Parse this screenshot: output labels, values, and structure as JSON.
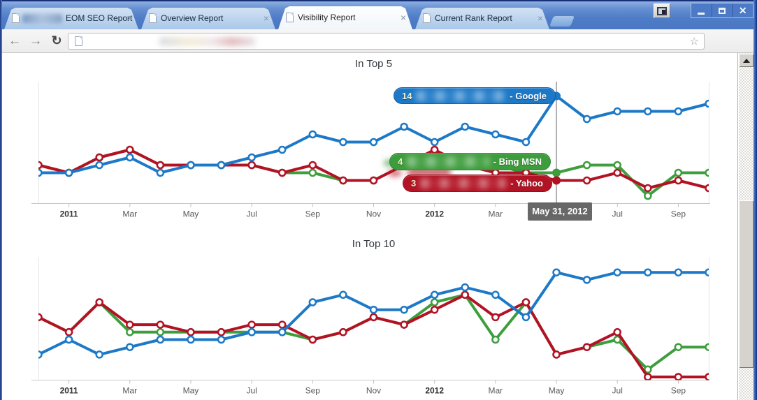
{
  "browser": {
    "tabs": [
      {
        "title": "EOM SEO Report",
        "redacted_prefix": true,
        "active": false
      },
      {
        "title": "Overview Report",
        "redacted_prefix": false,
        "active": false
      },
      {
        "title": "Visibility Report",
        "redacted_prefix": false,
        "active": true
      },
      {
        "title": "Current Rank Report",
        "redacted_prefix": false,
        "active": false
      }
    ],
    "tab_close_glyph": "×",
    "window_controls": {
      "minimize": "minimize",
      "maximize": "maximize",
      "close": "✕"
    },
    "toolbar": {
      "back": "←",
      "forward": "→",
      "reload": "↻",
      "bookmark_star": "☆",
      "url_redacted": true
    }
  },
  "tooltip": {
    "date": "May 31, 2012",
    "points": [
      {
        "value": "14",
        "suffix": "- Google"
      },
      {
        "value": "4",
        "suffix": "- Bing MSN"
      },
      {
        "value": "3",
        "suffix": "- Yahoo"
      }
    ]
  },
  "colors": {
    "google": "#1d79c7",
    "bing": "#3c9e3c",
    "yahoo": "#b31225",
    "crosshair": "#8a8a8a",
    "axis": "#c8c8c8"
  },
  "chart_data": [
    {
      "type": "line",
      "title": "In Top 5",
      "x": [
        "Dec 2010",
        "Jan 2011",
        "Feb 2011",
        "Mar 2011",
        "Apr 2011",
        "May 2011",
        "Jun 2011",
        "Jul 2011",
        "Aug 2011",
        "Sep 2011",
        "Oct 2011",
        "Nov 2011",
        "Dec 2011",
        "Jan 2012",
        "Feb 2012",
        "Mar 2012",
        "Apr 2012",
        "May 2012",
        "Jun 2012",
        "Jul 2012",
        "Aug 2012",
        "Sep 2012",
        "Oct 2012"
      ],
      "tick_labels": [
        "2011",
        "Mar",
        "May",
        "Jul",
        "Sep",
        "Nov",
        "2012",
        "Mar",
        "May",
        "Jul",
        "Sep"
      ],
      "series": [
        {
          "name": "Google",
          "color": "#1d79c7",
          "values": [
            4,
            4,
            5,
            6,
            4,
            5,
            5,
            6,
            7,
            9,
            8,
            8,
            10,
            8,
            10,
            9,
            8,
            14,
            11,
            12,
            12,
            12,
            13
          ]
        },
        {
          "name": "Bing MSN",
          "color": "#3c9e3c",
          "values": [
            5,
            4,
            6,
            7,
            5,
            5,
            5,
            5,
            4,
            4,
            3,
            3,
            5,
            6,
            5,
            5,
            4,
            4,
            5,
            5,
            1,
            4,
            4
          ]
        },
        {
          "name": "Yahoo",
          "color": "#b31225",
          "values": [
            5,
            4,
            6,
            7,
            5,
            5,
            5,
            5,
            4,
            5,
            3,
            3,
            5,
            7,
            5,
            4,
            4,
            3,
            3,
            4,
            2,
            3,
            2
          ]
        }
      ],
      "hover": {
        "x": "May 2012",
        "label": "May 31, 2012",
        "values": {
          "Google": 14,
          "Bing MSN": 4,
          "Yahoo": 3
        }
      },
      "legend": "none",
      "grid": false
    },
    {
      "type": "line",
      "title": "In Top 10",
      "x": [
        "Dec 2010",
        "Jan 2011",
        "Feb 2011",
        "Mar 2011",
        "Apr 2011",
        "May 2011",
        "Jun 2011",
        "Jul 2011",
        "Aug 2011",
        "Sep 2011",
        "Oct 2011",
        "Nov 2011",
        "Dec 2011",
        "Jan 2012",
        "Feb 2012",
        "Mar 2012",
        "Apr 2012",
        "May 2012",
        "Jun 2012",
        "Jul 2012",
        "Aug 2012",
        "Sep 2012",
        "Oct 2012"
      ],
      "tick_labels": [
        "2011",
        "Mar",
        "May",
        "Jul",
        "Sep",
        "Nov",
        "2012",
        "Mar",
        "May",
        "Jul",
        "Sep"
      ],
      "series": [
        {
          "name": "Google",
          "color": "#1d79c7",
          "values": [
            3,
            5,
            3,
            4,
            5,
            5,
            5,
            6,
            6,
            10,
            11,
            9,
            9,
            11,
            12,
            11,
            8,
            14,
            13,
            14,
            14,
            14,
            14
          ]
        },
        {
          "name": "Bing MSN",
          "color": "#3c9e3c",
          "values": [
            8,
            6,
            10,
            6,
            6,
            6,
            6,
            6,
            6,
            5,
            6,
            8,
            7,
            10,
            11,
            5,
            10,
            3,
            4,
            5,
            1,
            4,
            4
          ]
        },
        {
          "name": "Yahoo",
          "color": "#b31225",
          "values": [
            8,
            6,
            10,
            7,
            7,
            6,
            6,
            7,
            7,
            5,
            6,
            8,
            7,
            9,
            11,
            8,
            10,
            3,
            4,
            6,
            0,
            0,
            0
          ]
        }
      ],
      "legend": "none",
      "grid": false
    }
  ]
}
